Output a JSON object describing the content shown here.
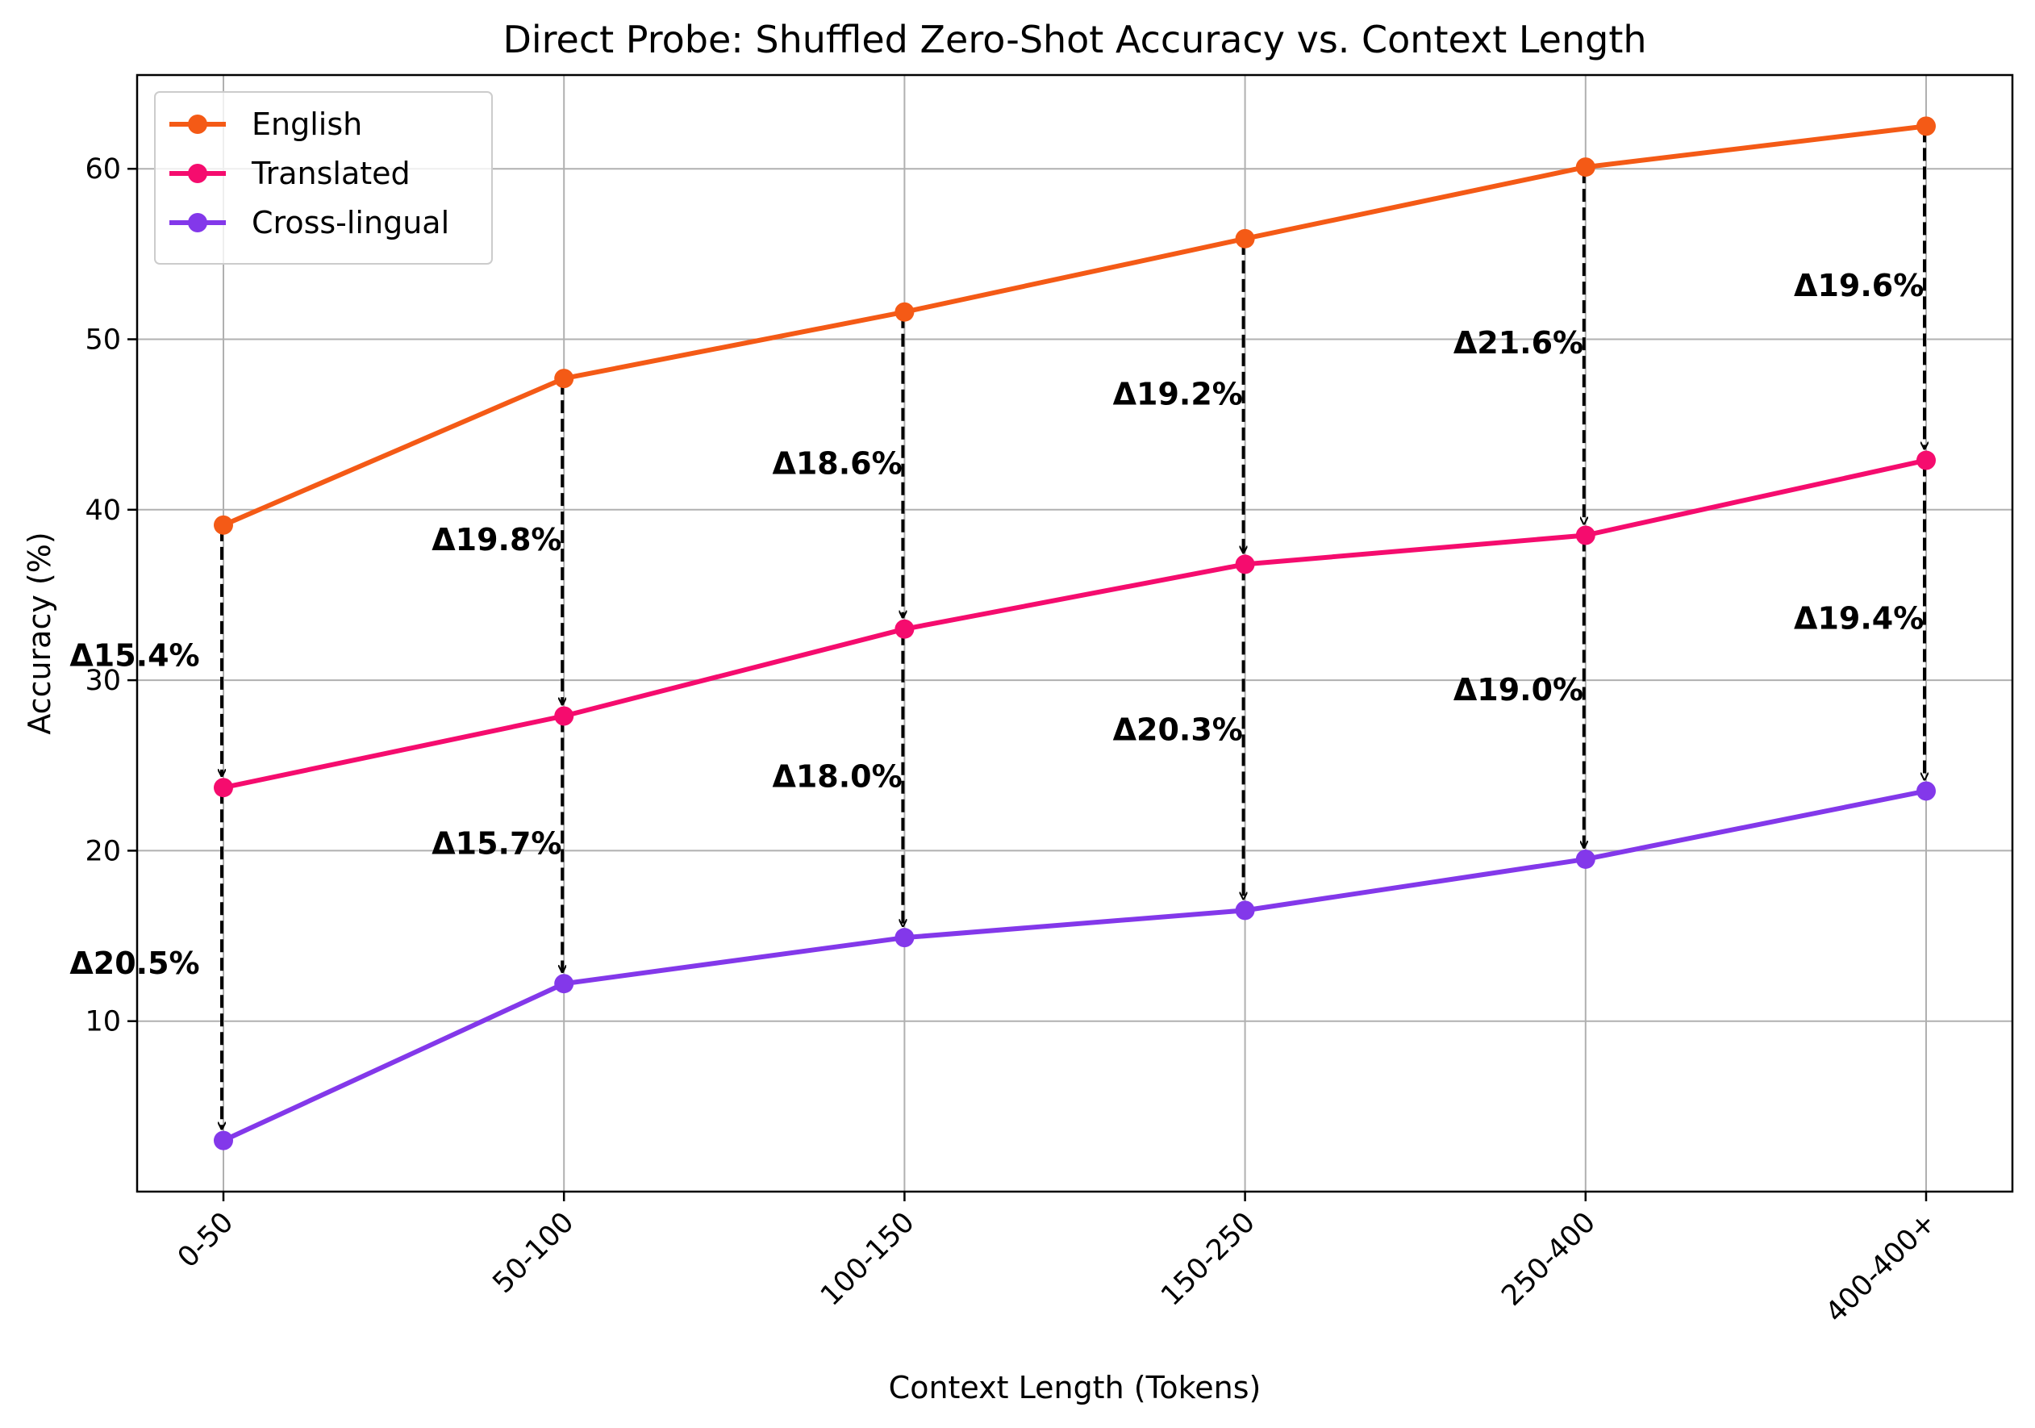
{
  "chart_data": {
    "type": "line",
    "title": "Direct Probe: Shuffled Zero-Shot Accuracy vs. Context Length",
    "xlabel": "Context Length (Tokens)",
    "ylabel": "Accuracy (%)",
    "categories": [
      "0-50",
      "50-100",
      "100-150",
      "150-250",
      "250-400",
      "400-400+"
    ],
    "ylim": [
      0,
      65.5
    ],
    "yticks": [
      10,
      20,
      30,
      40,
      50,
      60
    ],
    "grid": true,
    "legend_position": "top-left",
    "series": [
      {
        "name": "English",
        "color": "#f45a16",
        "values": [
          39.1,
          47.7,
          51.6,
          55.9,
          60.1,
          62.5
        ]
      },
      {
        "name": "Translated",
        "color": "#f50c6e",
        "values": [
          23.7,
          27.9,
          33.0,
          36.8,
          38.5,
          42.9
        ]
      },
      {
        "name": "Cross-lingual",
        "color": "#8338ea",
        "values": [
          3.0,
          12.2,
          14.9,
          16.5,
          19.5,
          23.5
        ]
      }
    ],
    "annotations": [
      {
        "category": "0-50",
        "from": "English",
        "to": "Translated",
        "label": "Δ15.4%"
      },
      {
        "category": "0-50",
        "from": "Translated",
        "to": "Cross-lingual",
        "label": "Δ20.5%"
      },
      {
        "category": "50-100",
        "from": "English",
        "to": "Translated",
        "label": "Δ19.8%"
      },
      {
        "category": "50-100",
        "from": "Translated",
        "to": "Cross-lingual",
        "label": "Δ15.7%"
      },
      {
        "category": "100-150",
        "from": "English",
        "to": "Translated",
        "label": "Δ18.6%"
      },
      {
        "category": "100-150",
        "from": "Translated",
        "to": "Cross-lingual",
        "label": "Δ18.0%"
      },
      {
        "category": "150-250",
        "from": "English",
        "to": "Translated",
        "label": "Δ19.2%"
      },
      {
        "category": "150-250",
        "from": "Translated",
        "to": "Cross-lingual",
        "label": "Δ20.3%"
      },
      {
        "category": "250-400",
        "from": "English",
        "to": "Translated",
        "label": "Δ21.6%"
      },
      {
        "category": "250-400",
        "from": "Translated",
        "to": "Cross-lingual",
        "label": "Δ19.0%"
      },
      {
        "category": "400-400+",
        "from": "English",
        "to": "Translated",
        "label": "Δ19.6%"
      },
      {
        "category": "400-400+",
        "from": "Translated",
        "to": "Cross-lingual",
        "label": "Δ19.4%"
      }
    ]
  }
}
